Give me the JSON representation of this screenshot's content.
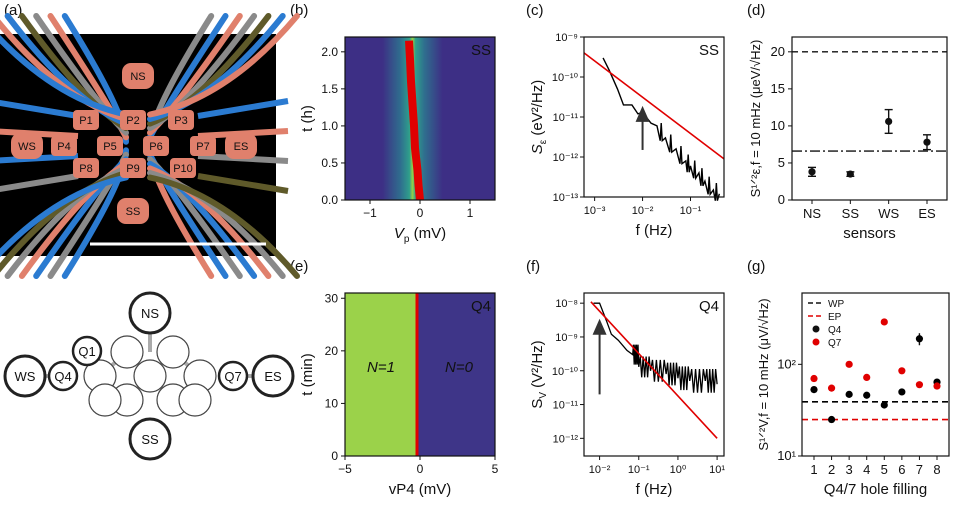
{
  "panels": {
    "a": {
      "label": "(a)",
      "gate_labels": [
        "NS",
        "P1",
        "P2",
        "P3",
        "WS",
        "P4",
        "P5",
        "P6",
        "P7",
        "ES",
        "P8",
        "P9",
        "P10",
        "SS"
      ]
    },
    "a2": {
      "node_labels": [
        "NS",
        "Q1",
        "WS",
        "Q4",
        "Q7",
        "ES",
        "SS"
      ]
    },
    "b": {
      "label": "(b)",
      "sensor": "SS",
      "ylabel": "t (h)",
      "xlabel": "V",
      "xlabel_sub": "p",
      "xlabel_unit": " (mV)",
      "xticks": [
        "−1",
        "0",
        "1"
      ],
      "yticks": [
        "0.0",
        "0.5",
        "1.0",
        "1.5",
        "2.0"
      ]
    },
    "c": {
      "label": "(c)",
      "sensor": "SS",
      "xlabel": "f (Hz)",
      "ylabel": "S",
      "ylabel_sub": "ε",
      "ylabel_rest": " (eV²/Hz)",
      "xticks": [
        "10⁻³",
        "10⁻²",
        "10⁻¹"
      ],
      "yticks": [
        "10⁻⁹",
        "10⁻¹⁰",
        "10⁻¹¹",
        "10⁻¹²",
        "10⁻¹³"
      ]
    },
    "d": {
      "label": "(d)",
      "xlabel": "sensors",
      "ylabel": "S¹ᐟ²ε,f = 10 mHz (μeV/√Hz)",
      "xticks": [
        "NS",
        "SS",
        "WS",
        "ES"
      ],
      "yticks": [
        "0",
        "5",
        "10",
        "15",
        "20"
      ]
    },
    "e": {
      "label": "(e)",
      "qubit": "Q4",
      "ylabel": "t (min)",
      "xlabel": "vP4 (mV)",
      "region_left": "N=1",
      "region_right": "N=0",
      "xticks": [
        "−5",
        "0",
        "5"
      ],
      "yticks": [
        "0",
        "10",
        "20",
        "30"
      ]
    },
    "f": {
      "label": "(f)",
      "qubit": "Q4",
      "xlabel": "f (Hz)",
      "ylabel": "S",
      "ylabel_sub": "V",
      "ylabel_rest": " (V²/Hz)",
      "xticks": [
        "10⁻²",
        "10⁻¹",
        "10⁰",
        "10¹"
      ],
      "yticks": [
        "10⁻⁸",
        "10⁻⁹",
        "10⁻¹⁰",
        "10⁻¹¹",
        "10⁻¹²"
      ]
    },
    "g": {
      "label": "(g)",
      "xlabel": "Q4/7 hole filling",
      "ylabel": "S¹ᐟ²V,f = 10 mHz (μV/√Hz)",
      "xticks": [
        "1",
        "2",
        "3",
        "4",
        "5",
        "6",
        "7",
        "8"
      ],
      "yticks": [
        "10¹",
        "10²"
      ],
      "legend": [
        "WP",
        "EP",
        "Q4",
        "Q7"
      ]
    }
  },
  "chart_data": [
    {
      "type": "heatmap",
      "panel": "b",
      "title": "SS",
      "xlabel": "Vp (mV)",
      "ylabel": "t (h)",
      "xlim": [
        -1.5,
        1.5
      ],
      "ylim": [
        0,
        2.2
      ],
      "peak_trace": {
        "x": [
          -0.22,
          -0.2,
          -0.18,
          -0.15,
          -0.12,
          -0.1,
          -0.05,
          -0.03,
          0.0
        ],
        "t": [
          2.15,
          1.9,
          1.6,
          1.3,
          1.0,
          0.7,
          0.4,
          0.2,
          0.0
        ]
      }
    },
    {
      "type": "line",
      "panel": "c",
      "title": "SS",
      "xlabel": "f (Hz)",
      "ylabel": "Sε (eV²/Hz)",
      "xscale": "log",
      "yscale": "log",
      "xlim": [
        0.0006,
        0.5
      ],
      "ylim": [
        1e-13,
        1e-09
      ],
      "series": [
        {
          "name": "data",
          "color": "#000000",
          "x": [
            0.0015,
            0.002,
            0.003,
            0.004,
            0.006,
            0.008,
            0.01,
            0.015,
            0.02,
            0.03,
            0.05,
            0.08,
            0.1,
            0.15,
            0.2,
            0.3,
            0.4
          ],
          "y": [
            3e-10,
            1.5e-10,
            5e-11,
            2e-11,
            2e-11,
            1.2e-11,
            1.3e-11,
            7e-12,
            6e-12,
            3e-12,
            1.6e-12,
            8e-13,
            6e-13,
            4e-13,
            2.5e-13,
            1.5e-13,
            1.2e-13
          ]
        },
        {
          "name": "fit",
          "color": "#e00000",
          "x": [
            0.0006,
            0.5
          ],
          "y": [
            4e-10,
            9e-13
          ]
        }
      ],
      "annotation": {
        "type": "arrow",
        "x": 0.01
      }
    },
    {
      "type": "scatter",
      "panel": "d",
      "xlabel": "sensors",
      "ylabel": "Sε^1/2 (μeV/√Hz)",
      "ylim": [
        0,
        22
      ],
      "categories": [
        "NS",
        "SS",
        "WS",
        "ES"
      ],
      "values": [
        3.8,
        3.5,
        10.6,
        7.8
      ],
      "errors": [
        0.6,
        0.3,
        1.6,
        1.0
      ],
      "hlines": [
        {
          "y": 20,
          "style": "dashed"
        },
        {
          "y": 6.6,
          "style": "dashdot"
        }
      ]
    },
    {
      "type": "heatmap",
      "panel": "e",
      "title": "Q4",
      "xlabel": "vP4 (mV)",
      "ylabel": "t (min)",
      "xlim": [
        -5,
        5
      ],
      "ylim": [
        0,
        31
      ],
      "transition_x": -0.2,
      "labels": [
        "N=1",
        "N=0"
      ]
    },
    {
      "type": "line",
      "panel": "f",
      "title": "Q4",
      "xlabel": "f (Hz)",
      "ylabel": "SV (V²/Hz)",
      "xscale": "log",
      "yscale": "log",
      "xlim": [
        0.004,
        15
      ],
      "ylim": [
        3e-13,
        2e-08
      ],
      "series": [
        {
          "name": "data",
          "color": "#000000",
          "x": [
            0.007,
            0.01,
            0.015,
            0.02,
            0.03,
            0.05,
            0.07,
            0.1,
            0.2,
            0.5,
            1,
            2,
            5,
            10
          ],
          "y": [
            1e-08,
            1e-08,
            3e-09,
            1.2e-09,
            8e-10,
            4e-10,
            3e-10,
            1.3e-10,
            1e-10,
            8e-11,
            6e-11,
            5e-11,
            5e-11,
            4e-11
          ]
        },
        {
          "name": "fit",
          "color": "#e00000",
          "x": [
            0.006,
            10
          ],
          "y": [
            1.1e-08,
            1e-12
          ]
        }
      ],
      "annotation": {
        "type": "arrow",
        "x": 0.01
      }
    },
    {
      "type": "scatter",
      "panel": "g",
      "xlabel": "Q4/7 hole filling",
      "ylabel": "SV^1/2 (μV/√Hz)",
      "yscale": "log",
      "ylim": [
        10,
        600
      ],
      "categories": [
        "1",
        "2",
        "3",
        "4",
        "5",
        "6",
        "7",
        "8"
      ],
      "series": [
        {
          "name": "Q4",
          "color": "#000000",
          "values": [
            53,
            25,
            47,
            46,
            36,
            50,
            190,
            64
          ]
        },
        {
          "name": "Q7",
          "color": "#e00000",
          "values": [
            70,
            55,
            100,
            72,
            290,
            85,
            60,
            58
          ]
        }
      ],
      "hlines": [
        {
          "name": "WP",
          "y": 39,
          "color": "#000000"
        },
        {
          "name": "EP",
          "y": 25,
          "color": "#e00000"
        }
      ]
    }
  ],
  "colors": {
    "red": "#e00000",
    "salmon": "#e0806c",
    "blue": "#2b7bd1",
    "olive": "#5f5a2a",
    "gray": "#8a8a8a",
    "viridis_dark": "#3d2f85",
    "viridis_mid": "#2f9f8c",
    "viridis_light": "#95d046"
  }
}
